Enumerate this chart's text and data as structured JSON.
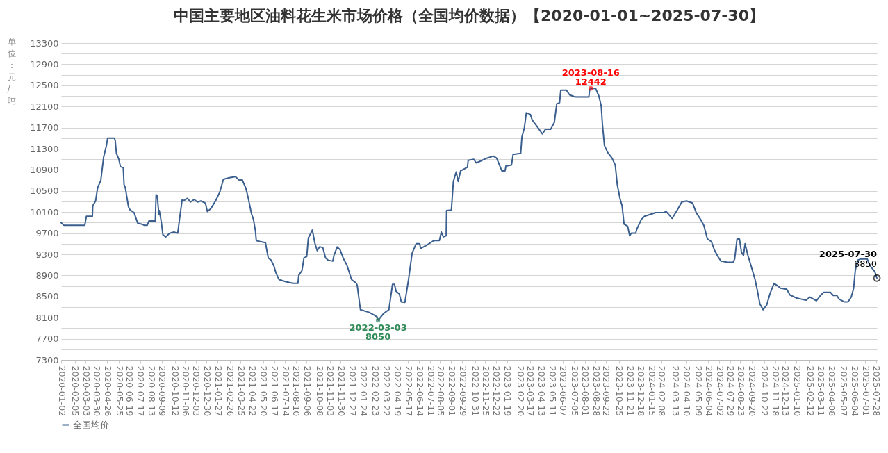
{
  "chart_data": {
    "type": "line",
    "title": "中国主要地区油料花生米市场价格（全国均价数据）【2020-01-01~2025-07-30】",
    "ylabel": "单位：元/吨",
    "x": [
      "2020-01-02",
      "2020-01-09",
      "2020-03-01",
      "2020-03-05",
      "2020-03-20",
      "2020-03-21",
      "2020-03-28",
      "2020-04-02",
      "2020-04-10",
      "2020-04-17",
      "2020-04-24",
      "2020-04-27",
      "2020-05-14",
      "2020-05-16",
      "2020-05-19",
      "2020-05-25",
      "2020-05-29",
      "2020-06-05",
      "2020-06-07",
      "2020-06-10",
      "2020-06-18",
      "2020-06-22",
      "2020-07-02",
      "2020-07-11",
      "2020-07-22",
      "2020-07-27",
      "2020-08-04",
      "2020-08-08",
      "2020-08-24",
      "2020-08-26",
      "2020-08-29",
      "2020-09-02",
      "2020-09-03",
      "2020-09-08",
      "2020-09-12",
      "2020-09-19",
      "2020-09-29",
      "2020-10-09",
      "2020-10-19",
      "2020-10-24",
      "2020-10-30",
      "2020-11-04",
      "2020-11-12",
      "2020-11-20",
      "2020-11-29",
      "2020-12-07",
      "2020-12-16",
      "2020-12-27",
      "2021-01-01",
      "2021-01-10",
      "2021-01-22",
      "2021-02-01",
      "2021-02-10",
      "2021-02-25",
      "2021-03-12",
      "2021-03-22",
      "2021-03-29",
      "2021-04-07",
      "2021-04-12",
      "2021-04-21",
      "2021-04-26",
      "2021-05-01",
      "2021-05-03",
      "2021-05-13",
      "2021-05-26",
      "2021-05-29",
      "2021-06-02",
      "2021-06-09",
      "2021-06-16",
      "2021-06-21",
      "2021-06-29",
      "2021-07-16",
      "2021-08-02",
      "2021-08-15",
      "2021-08-17",
      "2021-08-25",
      "2021-08-30",
      "2021-09-06",
      "2021-09-10",
      "2021-09-16",
      "2021-09-20",
      "2021-09-26",
      "2021-10-02",
      "2021-10-08",
      "2021-10-16",
      "2021-10-23",
      "2021-10-29",
      "2021-11-10",
      "2021-11-13",
      "2021-11-21",
      "2021-11-28",
      "2021-12-07",
      "2021-12-15",
      "2021-12-27",
      "2022-01-08",
      "2022-01-10",
      "2022-01-18",
      "2022-02-09",
      "2022-02-23",
      "2022-03-01",
      "2022-03-03",
      "2022-03-17",
      "2022-03-30",
      "2022-04-08",
      "2022-04-13",
      "2022-04-17",
      "2022-04-25",
      "2022-04-30",
      "2022-05-09",
      "2022-05-18",
      "2022-05-27",
      "2022-06-06",
      "2022-06-15",
      "2022-06-17",
      "2022-07-04",
      "2022-07-20",
      "2022-08-03",
      "2022-08-08",
      "2022-08-13",
      "2022-08-20",
      "2022-08-21",
      "2022-09-02",
      "2022-09-07",
      "2022-09-14",
      "2022-09-19",
      "2022-09-25",
      "2022-10-12",
      "2022-10-14",
      "2022-10-28",
      "2022-11-03",
      "2022-11-18",
      "2022-11-29",
      "2022-12-16",
      "2022-12-24",
      "2022-12-30",
      "2023-01-06",
      "2023-01-14",
      "2023-01-16",
      "2023-01-30",
      "2023-02-03",
      "2023-02-22",
      "2023-02-25",
      "2023-03-03",
      "2023-03-08",
      "2023-03-18",
      "2023-03-23",
      "2023-04-05",
      "2023-04-17",
      "2023-04-25",
      "2023-05-08",
      "2023-05-17",
      "2023-05-23",
      "2023-05-30",
      "2023-06-02",
      "2023-06-16",
      "2023-06-24",
      "2023-07-08",
      "2023-08-11",
      "2023-08-13",
      "2023-08-16",
      "2023-08-28",
      "2023-09-05",
      "2023-09-11",
      "2023-09-14",
      "2023-09-19",
      "2023-09-27",
      "2023-10-08",
      "2023-10-16",
      "2023-10-21",
      "2023-10-28",
      "2023-11-02",
      "2023-11-07",
      "2023-11-16",
      "2023-11-21",
      "2023-11-25",
      "2023-12-06",
      "2023-12-09",
      "2023-12-20",
      "2023-12-28",
      "2024-01-09",
      "2024-01-25",
      "2024-02-14",
      "2024-02-20",
      "2024-03-06",
      "2024-03-18",
      "2024-03-30",
      "2024-04-11",
      "2024-04-26",
      "2024-05-05",
      "2024-05-16",
      "2024-05-24",
      "2024-06-02",
      "2024-06-12",
      "2024-06-19",
      "2024-06-28",
      "2024-07-06",
      "2024-07-23",
      "2024-08-05",
      "2024-08-09",
      "2024-08-15",
      "2024-08-21",
      "2024-08-26",
      "2024-08-31",
      "2024-09-04",
      "2024-09-11",
      "2024-09-19",
      "2024-09-29",
      "2024-10-05",
      "2024-10-11",
      "2024-10-19",
      "2024-10-28",
      "2024-11-05",
      "2024-11-15",
      "2024-11-23",
      "2024-12-01",
      "2024-12-17",
      "2024-12-25",
      "2025-01-11",
      "2025-02-03",
      "2025-02-13",
      "2025-03-01",
      "2025-03-10",
      "2025-03-19",
      "2025-04-05",
      "2025-04-12",
      "2025-04-21",
      "2025-04-27",
      "2025-05-09",
      "2025-05-19",
      "2025-05-27",
      "2025-06-02",
      "2025-06-06",
      "2025-06-12",
      "2025-06-19",
      "2025-07-06",
      "2025-07-13",
      "2025-07-25",
      "2025-07-30"
    ],
    "series": [
      {
        "name": "全国均价",
        "color": "#3a5f8f",
        "values": [
          9900,
          9850,
          9850,
          10020,
          10020,
          10220,
          10310,
          10560,
          10700,
          11140,
          11360,
          11500,
          11500,
          11450,
          11210,
          11100,
          10960,
          10940,
          10620,
          10570,
          10200,
          10140,
          10090,
          9890,
          9870,
          9850,
          9850,
          9930,
          9930,
          10430,
          10400,
          10050,
          10130,
          9910,
          9670,
          9630,
          9700,
          9720,
          9700,
          10000,
          10330,
          10320,
          10360,
          10290,
          10340,
          10290,
          10310,
          10270,
          10110,
          10170,
          10320,
          10480,
          10720,
          10750,
          10770,
          10700,
          10710,
          10550,
          10400,
          10070,
          9960,
          9740,
          9560,
          9540,
          9520,
          9390,
          9230,
          9190,
          9080,
          8950,
          8820,
          8780,
          8750,
          8750,
          8900,
          8990,
          9230,
          9260,
          9610,
          9700,
          9760,
          9520,
          9370,
          9440,
          9430,
          9230,
          9190,
          9170,
          9280,
          9440,
          9390,
          9210,
          9100,
          8820,
          8750,
          8710,
          8250,
          8200,
          8140,
          8110,
          8050,
          8180,
          8250,
          8730,
          8730,
          8600,
          8550,
          8400,
          8390,
          8820,
          9320,
          9500,
          9500,
          9410,
          9480,
          9560,
          9560,
          9720,
          9630,
          9650,
          10130,
          10140,
          10680,
          10860,
          10680,
          10880,
          10950,
          11080,
          11100,
          11030,
          11080,
          11120,
          11160,
          11120,
          11010,
          10880,
          10880,
          10970,
          10990,
          11190,
          11210,
          11520,
          11690,
          11980,
          11950,
          11840,
          11710,
          11580,
          11670,
          11670,
          11800,
          12150,
          12170,
          12410,
          12410,
          12320,
          12280,
          12280,
          12410,
          12442,
          12440,
          12300,
          12110,
          11760,
          11360,
          11230,
          11120,
          10990,
          10620,
          10350,
          10220,
          9870,
          9830,
          9650,
          9700,
          9700,
          9780,
          9960,
          10020,
          10050,
          10090,
          10090,
          10110,
          9980,
          10130,
          10290,
          10310,
          10270,
          10090,
          9960,
          9850,
          9590,
          9540,
          9390,
          9260,
          9170,
          9150,
          9150,
          9210,
          9590,
          9590,
          9340,
          9280,
          9500,
          9280,
          9080,
          8820,
          8600,
          8360,
          8250,
          8340,
          8550,
          8750,
          8710,
          8660,
          8640,
          8530,
          8470,
          8430,
          8490,
          8420,
          8510,
          8580,
          8580,
          8520,
          8520,
          8450,
          8400,
          8400,
          8490,
          8660,
          8990,
          9190,
          9210,
          9210,
          9080,
          8970,
          8850
        ]
      }
    ],
    "xlim": [
      "2020-01-02",
      "2025-07-30"
    ],
    "xticks": [
      "2020-01-02",
      "2020-02-05",
      "2020-03-03",
      "2020-03-30",
      "2020-04-26",
      "2020-05-25",
      "2020-06-19",
      "2020-07-17",
      "2020-08-13",
      "2020-09-09",
      "2020-10-12",
      "2020-11-06",
      "2020-12-03",
      "2020-12-30",
      "2021-01-27",
      "2021-02-26",
      "2021-03-25",
      "2021-04-22",
      "2021-05-20",
      "2021-06-17",
      "2021-07-14",
      "2021-08-10",
      "2021-09-06",
      "2021-10-08",
      "2021-11-03",
      "2021-11-30",
      "2021-12-27",
      "2022-01-24",
      "2022-02-23",
      "2022-03-22",
      "2022-04-19",
      "2022-05-17",
      "2022-06-14",
      "2022-07-11",
      "2022-08-05",
      "2022-09-01",
      "2022-09-29",
      "2022-10-31",
      "2022-11-25",
      "2022-12-22",
      "2023-01-19",
      "2023-02-20",
      "2023-03-17",
      "2023-04-13",
      "2023-05-11",
      "2023-06-07",
      "2023-07-05",
      "2023-08-01",
      "2023-08-28",
      "2023-09-22",
      "2023-10-25",
      "2023-11-21",
      "2023-12-18",
      "2024-01-15",
      "2024-02-08",
      "2024-03-13",
      "2024-04-10",
      "2024-05-09",
      "2024-06-04",
      "2024-07-02",
      "2024-07-29",
      "2024-08-23",
      "2024-09-20",
      "2024-10-22",
      "2024-11-18",
      "2024-12-13",
      "2025-01-10",
      "2025-02-12",
      "2025-03-11",
      "2025-04-08",
      "2025-05-07",
      "2025-06-04",
      "2025-07-01",
      "2025-07-28"
    ],
    "ylim": [
      7300,
      13300
    ],
    "yticks": [
      7300,
      {
        "value": 7500,
        "label": null
      },
      7700,
      {
        "value": 7900,
        "label": null
      },
      8100,
      {
        "value": 8300,
        "label": null
      },
      8500,
      {
        "value": 8700,
        "label": null
      },
      8900,
      {
        "value": 9100,
        "label": null
      },
      9300,
      {
        "value": 9500,
        "label": null
      },
      9700,
      {
        "value": 9900,
        "label": null
      },
      10100,
      {
        "value": 10300,
        "label": null
      },
      10500,
      {
        "value": 10700,
        "label": null
      },
      10900,
      {
        "value": 11100,
        "label": null
      },
      11300,
      {
        "value": 11500,
        "label": null
      },
      11700,
      {
        "value": 11900,
        "label": null
      },
      12100,
      {
        "value": 12300,
        "label": null
      },
      12500,
      {
        "value": 12700,
        "label": null
      },
      12900,
      {
        "value": 13100,
        "label": null
      },
      13300
    ],
    "grid": "y",
    "legend": "bottom",
    "marker": "none",
    "line_style": "solid",
    "annotations": [
      {
        "text": "2023-08-16",
        "x": "2023-08-16",
        "y": 12442
      },
      {
        "text": "12442",
        "x": "2023-08-16",
        "y": 12442
      },
      {
        "text": "2022-03-03",
        "x": "2022-03-03",
        "y": 8050
      },
      {
        "text": "8050",
        "x": "2022-03-03",
        "y": 8050
      },
      {
        "text": "2025-07-30",
        "x": "2025-07-30",
        "y": 8850
      },
      {
        "text": "8850",
        "x": "2025-07-30",
        "y": 8850
      }
    ]
  }
}
